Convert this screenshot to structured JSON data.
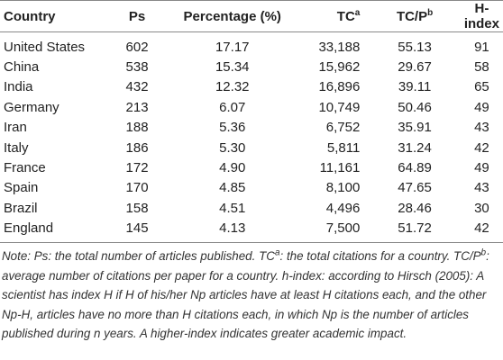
{
  "table": {
    "columns": [
      {
        "text": "Country"
      },
      {
        "text": "Ps"
      },
      {
        "text": "Percentage (%)"
      },
      {
        "text": "TC",
        "sup": "a"
      },
      {
        "text": "TC/P",
        "sup": "b"
      },
      {
        "text": "H-index"
      }
    ],
    "rows": [
      [
        "United States",
        "602",
        "17.17",
        "33,188",
        "55.13",
        "91"
      ],
      [
        "China",
        "538",
        "15.34",
        "15,962",
        "29.67",
        "58"
      ],
      [
        "India",
        "432",
        "12.32",
        "16,896",
        "39.11",
        "65"
      ],
      [
        "Germany",
        "213",
        "6.07",
        "10,749",
        "50.46",
        "49"
      ],
      [
        "Iran",
        "188",
        "5.36",
        "6,752",
        "35.91",
        "43"
      ],
      [
        "Italy",
        "186",
        "5.30",
        "5,811",
        "31.24",
        "42"
      ],
      [
        "France",
        "172",
        "4.90",
        "11,161",
        "64.89",
        "49"
      ],
      [
        "Spain",
        "170",
        "4.85",
        "8,100",
        "47.65",
        "43"
      ],
      [
        "Brazil",
        "158",
        "4.51",
        "4,496",
        "28.46",
        "30"
      ],
      [
        "England",
        "145",
        "4.13",
        "7,500",
        "51.72",
        "42"
      ]
    ],
    "note": [
      {
        "text": "Note: Ps: the total number of articles published. TC"
      },
      {
        "sup": "a"
      },
      {
        "text": ": the total citations for a country. TC/P"
      },
      {
        "sup": "b"
      },
      {
        "text": ": average number of citations per paper for a country. h-index: according to Hirsch (2005): A scientist has index H if H of his/her Np articles have at least H citations each, and the other Np-H, articles have no more than H citations each, in which Np is the number of articles published during n years. A higher-index indicates greater academic impact."
      }
    ]
  }
}
